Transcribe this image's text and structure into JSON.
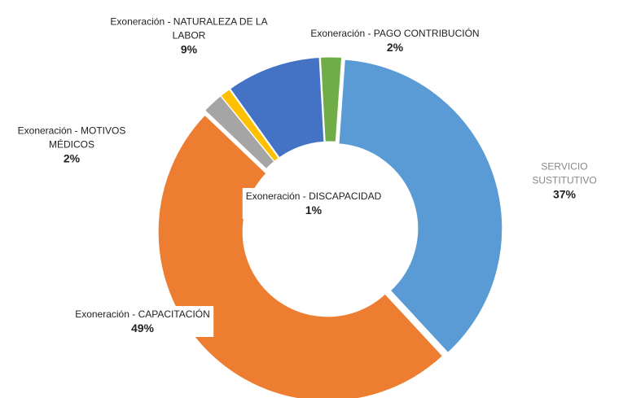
{
  "chart_data": {
    "type": "donut",
    "categories": [
      "SERVICIO SUSTITUTIVO",
      "Exoneración - CAPACITACIÓN",
      "Exoneración - MOTIVOS MÉDICOS",
      "Exoneración - DISCAPACIDAD",
      "Exoneración - NATURALEZA DE LA LABOR",
      "Exoneración - PAGO CONTRIBUCIÓN"
    ],
    "values": [
      37,
      49,
      2,
      1,
      9,
      2
    ],
    "value_labels": [
      "37%",
      "49%",
      "2%",
      "1%",
      "9%",
      "2%"
    ],
    "colors": [
      "#5b9bd5",
      "#ed7d31",
      "#a5a5a5",
      "#ffc000",
      "#4472c4",
      "#70ad47"
    ]
  }
}
